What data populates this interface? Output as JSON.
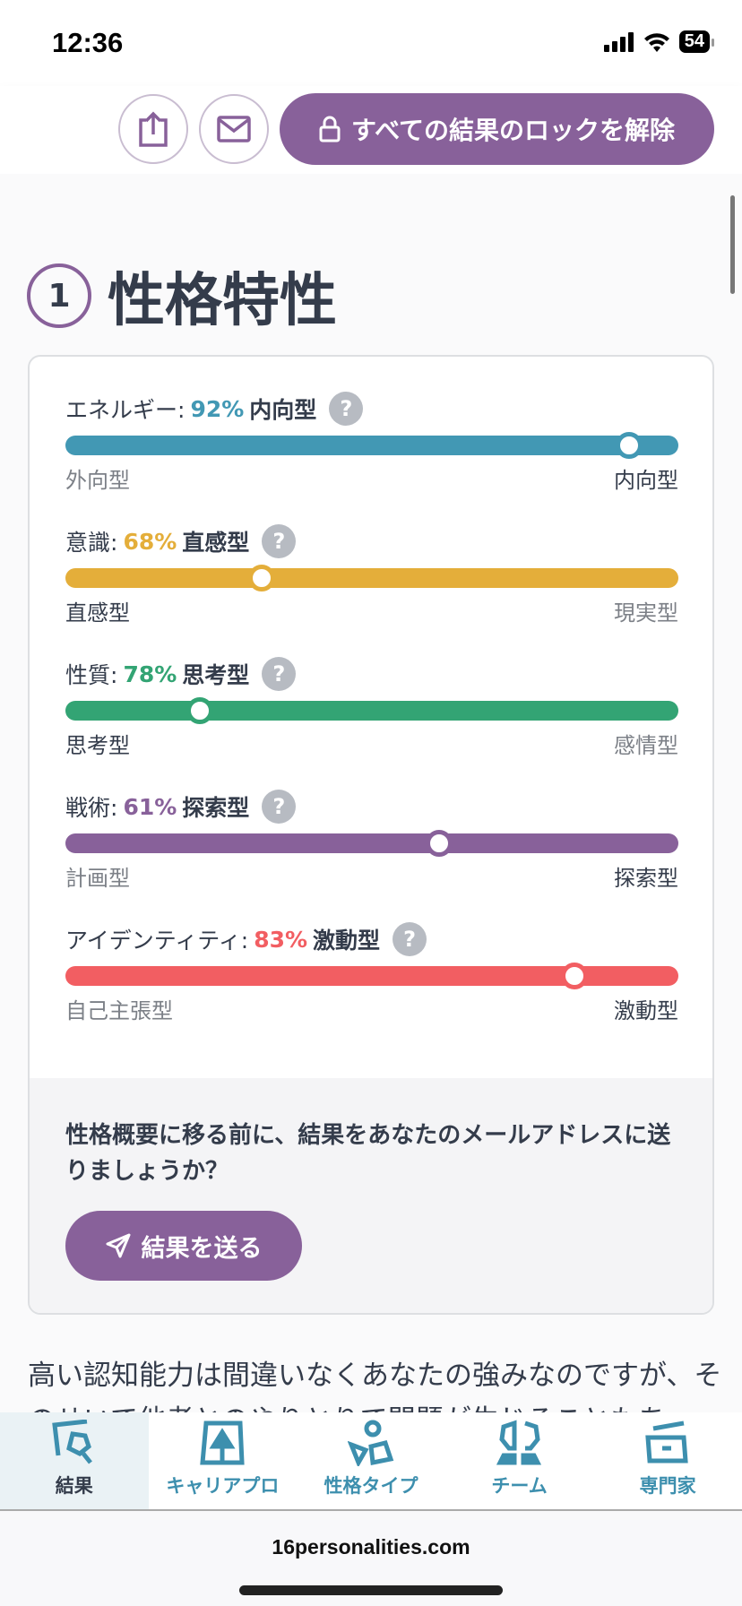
{
  "status": {
    "time": "12:36",
    "battery": "54"
  },
  "header": {
    "unlock_label": "すべての結果のロックを解除"
  },
  "section": {
    "number": "1",
    "title": "性格特性"
  },
  "traits": [
    {
      "category": "エネルギー:",
      "percent": "92%",
      "name": "内向型",
      "left": "外向型",
      "right": "内向型",
      "side": "right",
      "value": 0.92,
      "color": "#4298b4"
    },
    {
      "category": "意識:",
      "percent": "68%",
      "name": "直感型",
      "left": "直感型",
      "right": "現実型",
      "side": "left",
      "value": 0.68,
      "color": "#e4ae3a"
    },
    {
      "category": "性質:",
      "percent": "78%",
      "name": "思考型",
      "left": "思考型",
      "right": "感情型",
      "side": "left",
      "value": 0.78,
      "color": "#33a474"
    },
    {
      "category": "戦術:",
      "percent": "61%",
      "name": "探索型",
      "left": "計画型",
      "right": "探索型",
      "side": "right",
      "value": 0.61,
      "color": "#88619a"
    },
    {
      "category": "アイデンティティ:",
      "percent": "83%",
      "name": "激動型",
      "left": "自己主張型",
      "right": "激動型",
      "side": "right",
      "value": 0.83,
      "color": "#f25e62"
    }
  ],
  "help_glyph": "?",
  "email_prompt": {
    "text": "性格概要に移る前に、結果をあなたのメールアドレスに送りましょうか？",
    "button": "結果を送る"
  },
  "paragraph": "高い認知能力は間違いなくあなたの強みなのですが、そのせいで他者とのやりとりで問題が生じることもあ",
  "nav": [
    {
      "label": "結果",
      "icon": "results-icon",
      "active": true
    },
    {
      "label": "キャリアプロ",
      "icon": "career-icon"
    },
    {
      "label": "性格タイプ",
      "icon": "personality-types-icon"
    },
    {
      "label": "チーム",
      "icon": "teams-icon"
    },
    {
      "label": "専門家",
      "icon": "professionals-icon"
    }
  ],
  "browser": {
    "url": "16personalities.com"
  }
}
